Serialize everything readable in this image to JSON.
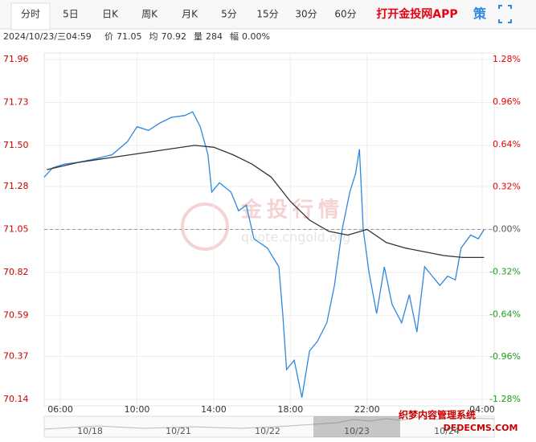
{
  "tabs": [
    "分时",
    "5日",
    "日K",
    "周K",
    "月K",
    "5分",
    "15分",
    "30分",
    "60分"
  ],
  "app_link": "打开金投网APP",
  "strategy": "策",
  "info": {
    "datetime": "2024/10/23/三04:59",
    "items": [
      {
        "label": "价",
        "value": "71.05"
      },
      {
        "label": "均",
        "value": "70.92"
      },
      {
        "label": "量",
        "value": "284"
      },
      {
        "label": "幅",
        "value": "0.00%"
      }
    ]
  },
  "watermark": [
    "金投行情",
    "quote.cngold.org"
  ],
  "navigator": {
    "labels": [
      "10/18",
      "10/21",
      "10/22",
      "10/23",
      "10/24"
    ]
  },
  "corner_mark": [
    "织梦内容管理系统",
    "DEDECMS.COM"
  ],
  "chart_data": {
    "type": "line",
    "xlim": [
      5.16,
      28.63
    ],
    "xticks": [
      {
        "value": 6,
        "label": "06:00"
      },
      {
        "value": 10,
        "label": "10:00"
      },
      {
        "value": 14,
        "label": "14:00"
      },
      {
        "value": 18,
        "label": "18:00"
      },
      {
        "value": 22,
        "label": "22:00"
      },
      {
        "value": 28,
        "label": "04:00"
      }
    ],
    "ylim": [
      70.14,
      71.96
    ],
    "yticks": [
      70.14,
      70.37,
      70.59,
      70.82,
      71.05,
      71.28,
      {
        "value": 71.5,
        "label": "71.50"
      },
      71.73,
      71.96
    ],
    "y2lim": [
      -1.28,
      1.28
    ],
    "y2ticks": [
      {
        "value": -1.28,
        "label": "-1.28%"
      },
      {
        "value": -0.96,
        "label": "-0.96%"
      },
      {
        "value": -0.64,
        "label": "-0.64%"
      },
      {
        "value": -0.32,
        "label": "-0.32%"
      },
      {
        "value": 0,
        "label": "0.00%"
      },
      {
        "value": 0.32,
        "label": "0.32%"
      },
      {
        "value": 0.64,
        "label": "0.64%"
      },
      {
        "value": 0.96,
        "label": "0.96%"
      },
      {
        "value": 1.28,
        "label": "1.28%"
      }
    ],
    "reference_line": 71.05,
    "grid": true,
    "series": [
      {
        "name": "价",
        "color": "#2f88e0",
        "x": [
          5.16,
          5.6,
          6.2,
          7.0,
          7.9,
          8.7,
          9.5,
          10.0,
          10.6,
          11.2,
          11.8,
          12.5,
          12.9,
          13.3,
          13.7,
          13.9,
          14.3,
          14.9,
          15.3,
          15.7,
          16.1,
          16.8,
          17.4,
          17.6,
          17.8,
          18.2,
          18.6,
          19.0,
          19.4,
          19.9,
          20.3,
          20.7,
          21.1,
          21.4,
          21.6,
          21.8,
          22.1,
          22.5,
          22.9,
          23.3,
          23.8,
          24.2,
          24.6,
          25.0,
          25.4,
          25.8,
          26.2,
          26.6,
          26.9,
          27.4,
          27.8,
          28.1
        ],
        "values": [
          71.33,
          71.38,
          71.4,
          71.41,
          71.43,
          71.45,
          71.52,
          71.6,
          71.58,
          71.62,
          71.65,
          71.66,
          71.68,
          71.6,
          71.45,
          71.25,
          71.3,
          71.25,
          71.15,
          71.18,
          71.0,
          70.95,
          70.85,
          70.6,
          70.3,
          70.35,
          70.15,
          70.4,
          70.45,
          70.55,
          70.75,
          71.05,
          71.25,
          71.35,
          71.48,
          71.05,
          70.82,
          70.6,
          70.85,
          70.65,
          70.55,
          70.7,
          70.5,
          70.85,
          70.8,
          70.75,
          70.8,
          70.78,
          70.95,
          71.02,
          71.0,
          71.05
        ]
      },
      {
        "name": "均",
        "color": "#333333",
        "x": [
          5.3,
          7.0,
          9.0,
          11.0,
          13.0,
          14.0,
          15.0,
          16.0,
          17.0,
          18.0,
          19.0,
          20.0,
          21.0,
          22.0,
          23.0,
          24.0,
          25.0,
          26.0,
          27.0,
          28.1
        ],
        "values": [
          71.37,
          71.41,
          71.44,
          71.47,
          71.5,
          71.49,
          71.45,
          71.4,
          71.33,
          71.2,
          71.1,
          71.04,
          71.02,
          71.05,
          70.98,
          70.95,
          70.93,
          70.91,
          70.9,
          70.9
        ]
      }
    ]
  }
}
